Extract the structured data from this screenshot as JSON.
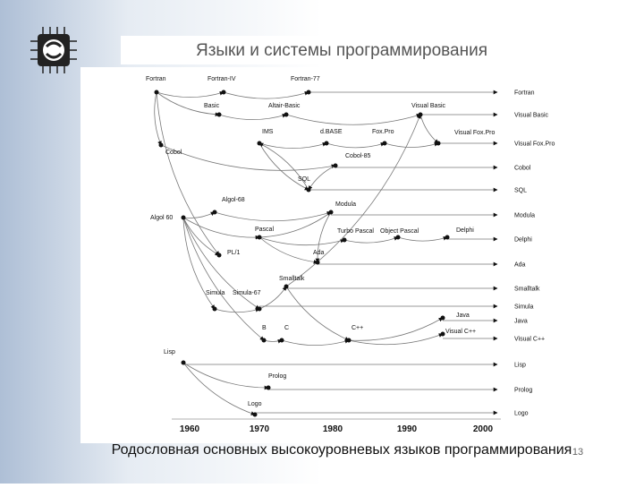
{
  "title": "Языки и системы программирования",
  "nodes": [
    {
      "label": "Fortran"
    },
    {
      "label": "Fortran-IV"
    },
    {
      "label": "Fortran-77"
    },
    {
      "label": "Basic"
    },
    {
      "label": "Altair-Basic"
    },
    {
      "label": "Visual Basic"
    },
    {
      "label": "IMS"
    },
    {
      "label": "d.BASE"
    },
    {
      "label": "Fox.Pro"
    },
    {
      "label": "Visual Fox.Pro"
    },
    {
      "label": "Cobol"
    },
    {
      "label": "Cobol-85"
    },
    {
      "label": "SQL"
    },
    {
      "label": "Algol-68"
    },
    {
      "label": "Modula"
    },
    {
      "label": "Algol 60"
    },
    {
      "label": "Pascal"
    },
    {
      "label": "Turbo Pascal"
    },
    {
      "label": "Object Pascal"
    },
    {
      "label": "Delphi"
    },
    {
      "label": "PL/1"
    },
    {
      "label": "Ada"
    },
    {
      "label": "Smalltalk"
    },
    {
      "label": "Simula"
    },
    {
      "label": "Simula-67"
    },
    {
      "label": "Java"
    },
    {
      "label": "B"
    },
    {
      "label": "C"
    },
    {
      "label": "C++"
    },
    {
      "label": "Visual C++"
    },
    {
      "label": "Lisp"
    },
    {
      "label": "Prolog"
    },
    {
      "label": "Logo"
    }
  ],
  "right_labels": [
    "Fortran",
    "Visual Basic",
    "Visual Fox.Pro",
    "Cobol",
    "SQL",
    "Modula",
    "Delphi",
    "Ada",
    "Smalltalk",
    "Simula",
    "Java",
    "Visual C++",
    "Lisp",
    "Prolog",
    "Logo"
  ],
  "timeline": [
    "1960",
    "1970",
    "1980",
    "1990",
    "2000"
  ],
  "caption": "Родословная основных высокоуровневых языков программирования",
  "page_number": "13"
}
